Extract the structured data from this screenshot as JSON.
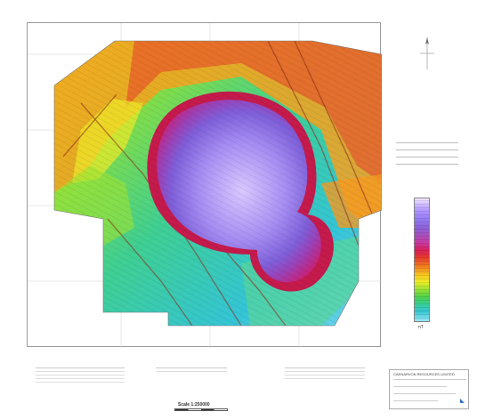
{
  "map": {
    "scale_label": "Scale 1:250000",
    "legend_unit": "nT",
    "company_name": "CARNARVON RESOURCES LIMITED",
    "colors": [
      "#f2e8ff",
      "#c8b2ff",
      "#9277ef",
      "#c73aa3",
      "#d81f5b",
      "#e63a2e",
      "#f07a20",
      "#f7c31e",
      "#eeee27",
      "#9de234",
      "#37cf93",
      "#35c7d3",
      "#9ae6f4"
    ]
  }
}
